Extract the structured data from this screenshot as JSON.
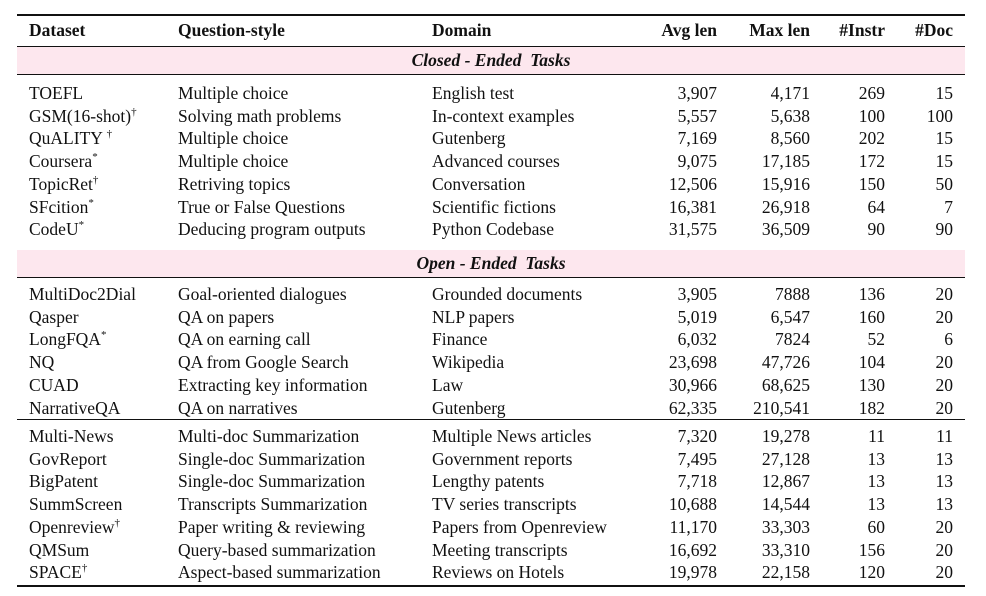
{
  "headers": [
    "Dataset",
    "Question-style",
    "Domain",
    "Avg len",
    "Max len",
    "#Instr",
    "#Doc"
  ],
  "sections": [
    {
      "title": "Closed - Ended  Tasks",
      "rows": [
        {
          "name": "TOEFL",
          "mark": "",
          "style": "Multiple choice",
          "domain": "English test",
          "avg": "3,907",
          "max": "4,171",
          "instr": "269",
          "doc": "15"
        },
        {
          "name": "GSM(16-shot)",
          "mark": "†",
          "style": "Solving math problems",
          "domain": "In-context examples",
          "avg": "5,557",
          "max": "5,638",
          "instr": "100",
          "doc": "100"
        },
        {
          "name": "QuALITY ",
          "mark": "†",
          "style": "Multiple choice",
          "domain": "Gutenberg",
          "avg": "7,169",
          "max": "8,560",
          "instr": "202",
          "doc": "15"
        },
        {
          "name": "Coursera",
          "mark": "*",
          "style": "Multiple choice",
          "domain": "Advanced courses",
          "avg": "9,075",
          "max": "17,185",
          "instr": "172",
          "doc": "15"
        },
        {
          "name": "TopicRet",
          "mark": "†",
          "style": "Retriving topics",
          "domain": "Conversation",
          "avg": "12,506",
          "max": "15,916",
          "instr": "150",
          "doc": "50"
        },
        {
          "name": "SFcition",
          "mark": "*",
          "style": "True or False Questions",
          "domain": "Scientific fictions",
          "avg": "16,381",
          "max": "26,918",
          "instr": "64",
          "doc": "7"
        },
        {
          "name": "CodeU",
          "mark": "*",
          "style": "Deducing program outputs",
          "domain": "Python Codebase",
          "avg": "31,575",
          "max": "36,509",
          "instr": "90",
          "doc": "90"
        }
      ]
    },
    {
      "title": "Open - Ended  Tasks",
      "rows": [
        {
          "name": "MultiDoc2Dial",
          "mark": "",
          "style": "Goal-oriented dialogues",
          "domain": "Grounded documents",
          "avg": "3,905",
          "max": "7888",
          "instr": "136",
          "doc": "20"
        },
        {
          "name": "Qasper",
          "mark": "",
          "style": "QA on papers",
          "domain": "NLP papers",
          "avg": "5,019",
          "max": "6,547",
          "instr": "160",
          "doc": "20"
        },
        {
          "name": "LongFQA",
          "mark": "*",
          "style": "QA on earning call",
          "domain": "Finance",
          "avg": "6,032",
          "max": "7824",
          "instr": "52",
          "doc": "6"
        },
        {
          "name": "NQ",
          "mark": "",
          "style": "QA from Google Search",
          "domain": "Wikipedia",
          "avg": "23,698",
          "max": "47,726",
          "instr": "104",
          "doc": "20"
        },
        {
          "name": "CUAD",
          "mark": "",
          "style": "Extracting key information",
          "domain": "Law",
          "avg": "30,966",
          "max": "68,625",
          "instr": "130",
          "doc": "20"
        },
        {
          "name": "NarrativeQA",
          "mark": "",
          "style": "QA on narratives",
          "domain": "Gutenberg",
          "avg": "62,335",
          "max": "210,541",
          "instr": "182",
          "doc": "20"
        }
      ]
    },
    {
      "title": "",
      "rows": [
        {
          "name": "Multi-News",
          "mark": "",
          "style": "Multi-doc Summarization",
          "domain": "Multiple News articles",
          "avg": "7,320",
          "max": "19,278",
          "instr": "11",
          "doc": "11"
        },
        {
          "name": "GovReport",
          "mark": "",
          "style": "Single-doc Summarization",
          "domain": "Government reports",
          "avg": "7,495",
          "max": "27,128",
          "instr": "13",
          "doc": "13"
        },
        {
          "name": "BigPatent",
          "mark": "",
          "style": "Single-doc Summarization",
          "domain": "Lengthy patents",
          "avg": "7,718",
          "max": "12,867",
          "instr": "13",
          "doc": "13"
        },
        {
          "name": "SummScreen",
          "mark": "",
          "style": "Transcripts Summarization",
          "domain": "TV series transcripts",
          "avg": "10,688",
          "max": "14,544",
          "instr": "13",
          "doc": "13"
        },
        {
          "name": "Openreview",
          "mark": "†",
          "style": "Paper writing & reviewing",
          "domain": "Papers from Openreview",
          "avg": "11,170",
          "max": "33,303",
          "instr": "60",
          "doc": "20"
        },
        {
          "name": "QMSum",
          "mark": "",
          "style": "Query-based summarization",
          "domain": "Meeting transcripts",
          "avg": "16,692",
          "max": "33,310",
          "instr": "156",
          "doc": "20"
        },
        {
          "name": "SPACE",
          "mark": "†",
          "style": "Aspect-based summarization",
          "domain": "Reviews on Hotels",
          "avg": "19,978",
          "max": "22,158",
          "instr": "120",
          "doc": "20"
        }
      ]
    }
  ]
}
